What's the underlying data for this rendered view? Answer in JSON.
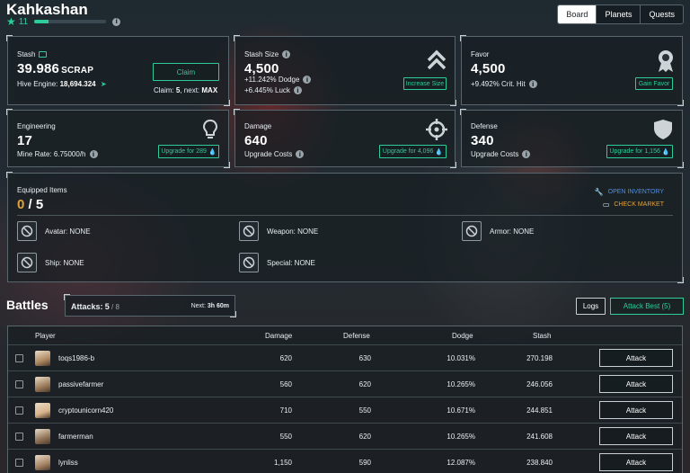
{
  "header": {
    "title": "Kahkashan",
    "level": "11",
    "xp_fraction": 0.2
  },
  "nav": {
    "tabs": [
      {
        "label": "Board",
        "active": true
      },
      {
        "label": "Planets"
      },
      {
        "label": "Quests"
      }
    ]
  },
  "stash": {
    "label": "Stash",
    "value": "39.986",
    "unit": "SCRAP",
    "hive_label": "Hive Engine:",
    "hive_value": "18,694.324",
    "claim_button": "Claim",
    "claim_label": "Claim:",
    "claim_value": "5",
    "next_label": ", next:",
    "next_value": "MAX"
  },
  "stash_size": {
    "label": "Stash Size",
    "value": "4,500",
    "dodge": "+11.242% Dodge",
    "luck": "+6.445% Luck",
    "button": "Increase Size"
  },
  "favor": {
    "label": "Favor",
    "value": "4,500",
    "crit": "+9.492% Crit. Hit",
    "button": "Gain Favor"
  },
  "engineering": {
    "label": "Engineering",
    "value": "17",
    "mine_rate": "Mine Rate: 6.75000/h",
    "button": "Upgrade for 289"
  },
  "damage": {
    "label": "Damage",
    "value": "640",
    "sub": "Upgrade Costs",
    "button": "Upgrade for 4,096"
  },
  "defense": {
    "label": "Defense",
    "value": "340",
    "sub": "Upgrade Costs",
    "button": "Upgrade for 1,156"
  },
  "equipped": {
    "label": "Equipped Items",
    "count": "0",
    "sep": "/",
    "total": "5",
    "open_inventory": "OPEN INVENTORY",
    "check_market": "CHECK MARKET",
    "slots": [
      {
        "label": "Avatar: NONE"
      },
      {
        "label": "Weapon: NONE"
      },
      {
        "label": "Armor: NONE"
      },
      {
        "label": "Ship: NONE"
      },
      {
        "label": "Special: NONE"
      }
    ]
  },
  "battles": {
    "title": "Battles",
    "attacks_label": "Attacks:",
    "attacks_value": "5",
    "attacks_max": "/ 8",
    "next_label": "Next:",
    "next_value": "3h 60m",
    "logs_button": "Logs",
    "attack_best_button": "Attack Best (5)",
    "columns": [
      "Player",
      "Damage",
      "Defense",
      "Dodge",
      "Stash"
    ],
    "attack_label": "Attack",
    "rows": [
      {
        "player": "toqs1986-b",
        "damage": "620",
        "defense": "630",
        "dodge": "10.031%",
        "stash": "270.198",
        "avatar_color": "#b08a62"
      },
      {
        "player": "passivefarmer",
        "damage": "560",
        "defense": "620",
        "dodge": "10.265%",
        "stash": "246.056",
        "avatar_color": "#9c7a5a"
      },
      {
        "player": "cryptounicorn420",
        "damage": "710",
        "defense": "550",
        "dodge": "10.671%",
        "stash": "244.851",
        "avatar_color": "#d9b48a"
      },
      {
        "player": "farmerman",
        "damage": "550",
        "defense": "620",
        "dodge": "10.265%",
        "stash": "241.608",
        "avatar_color": "#8f7356"
      },
      {
        "player": "lynliss",
        "damage": "1,150",
        "defense": "590",
        "dodge": "12.087%",
        "stash": "238.840",
        "avatar_color": "#a78464"
      }
    ]
  }
}
